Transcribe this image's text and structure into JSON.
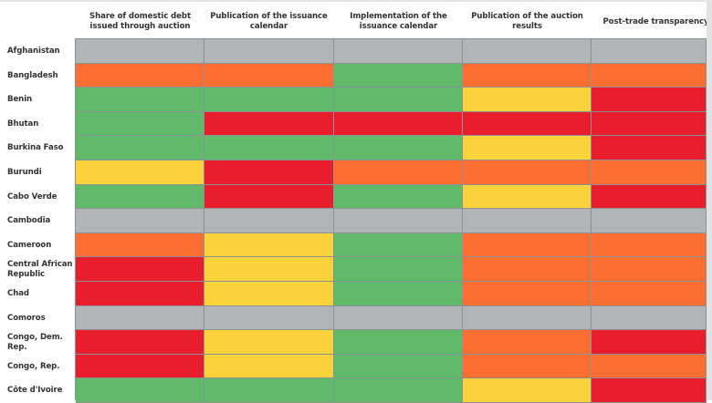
{
  "chart_data": {
    "type": "heatmap",
    "title": "",
    "columns": [
      "Share of domestic debt issued through auction",
      "Publication of the issuance calendar",
      "Implementation of the issuance calendar",
      "Publication of the auction results",
      "Post-trade transparency"
    ],
    "rows": [
      "Afghanistan",
      "Bangladesh",
      "Benin",
      "Bhutan",
      "Burkina Faso",
      "Burundi",
      "Cabo Verde",
      "Cambodia",
      "Cameroon",
      "Central African Republic",
      "Chad",
      "Comoros",
      "Congo, Dem. Rep.",
      "Congo, Rep.",
      "Côte d'Ivoire"
    ],
    "legend_colors": {
      "green": "#5fba69",
      "yellow": "#fbd23a",
      "orange": "#fe6e30",
      "red": "#e81e2d",
      "gray": "#b2b5b6"
    },
    "values": [
      [
        "gray",
        "gray",
        "gray",
        "gray",
        "gray"
      ],
      [
        "orange",
        "orange",
        "green",
        "orange",
        "orange"
      ],
      [
        "green",
        "green",
        "green",
        "yellow",
        "red"
      ],
      [
        "green",
        "red",
        "red",
        "red",
        "red"
      ],
      [
        "green",
        "green",
        "green",
        "yellow",
        "red"
      ],
      [
        "yellow",
        "red",
        "orange",
        "orange",
        "orange"
      ],
      [
        "green",
        "red",
        "green",
        "yellow",
        "red"
      ],
      [
        "gray",
        "gray",
        "gray",
        "gray",
        "gray"
      ],
      [
        "orange",
        "yellow",
        "green",
        "orange",
        "orange"
      ],
      [
        "red",
        "yellow",
        "green",
        "orange",
        "orange"
      ],
      [
        "red",
        "yellow",
        "green",
        "orange",
        "orange"
      ],
      [
        "gray",
        "gray",
        "gray",
        "gray",
        "gray"
      ],
      [
        "red",
        "yellow",
        "green",
        "orange",
        "red"
      ],
      [
        "red",
        "yellow",
        "green",
        "orange",
        "orange"
      ],
      [
        "green",
        "green",
        "green",
        "yellow",
        "red"
      ]
    ]
  }
}
